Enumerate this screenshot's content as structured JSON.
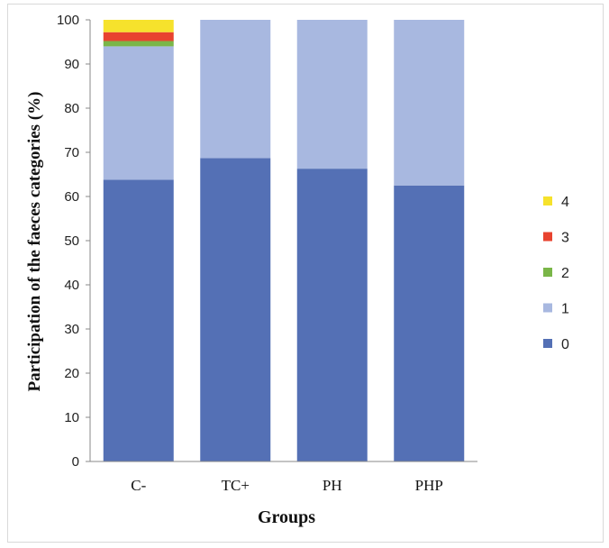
{
  "chart_data": {
    "type": "bar",
    "stacked": true,
    "categories": [
      "C-",
      "TC+",
      "PH",
      "PHP"
    ],
    "series": [
      {
        "name": "0",
        "color": "#5470b5",
        "values": [
          63.8,
          68.7,
          66.3,
          62.5
        ]
      },
      {
        "name": "1",
        "color": "#a8b8e0",
        "values": [
          30.2,
          31.3,
          33.7,
          37.5
        ]
      },
      {
        "name": "2",
        "color": "#7ab648",
        "values": [
          1.2,
          0,
          0,
          0
        ]
      },
      {
        "name": "3",
        "color": "#e8432f",
        "values": [
          2.0,
          0,
          0,
          0
        ]
      },
      {
        "name": "4",
        "color": "#f6e22c",
        "values": [
          2.8,
          0,
          0,
          0
        ]
      }
    ],
    "title": "",
    "xlabel": "Groups",
    "ylabel": "Participation of the faeces categories (%)",
    "ylim": [
      0,
      100
    ],
    "yticks": [
      0,
      10,
      20,
      30,
      40,
      50,
      60,
      70,
      80,
      90,
      100
    ],
    "legend_placement": "right",
    "legend_order": [
      "4",
      "3",
      "2",
      "1",
      "0"
    ],
    "grid": false
  }
}
